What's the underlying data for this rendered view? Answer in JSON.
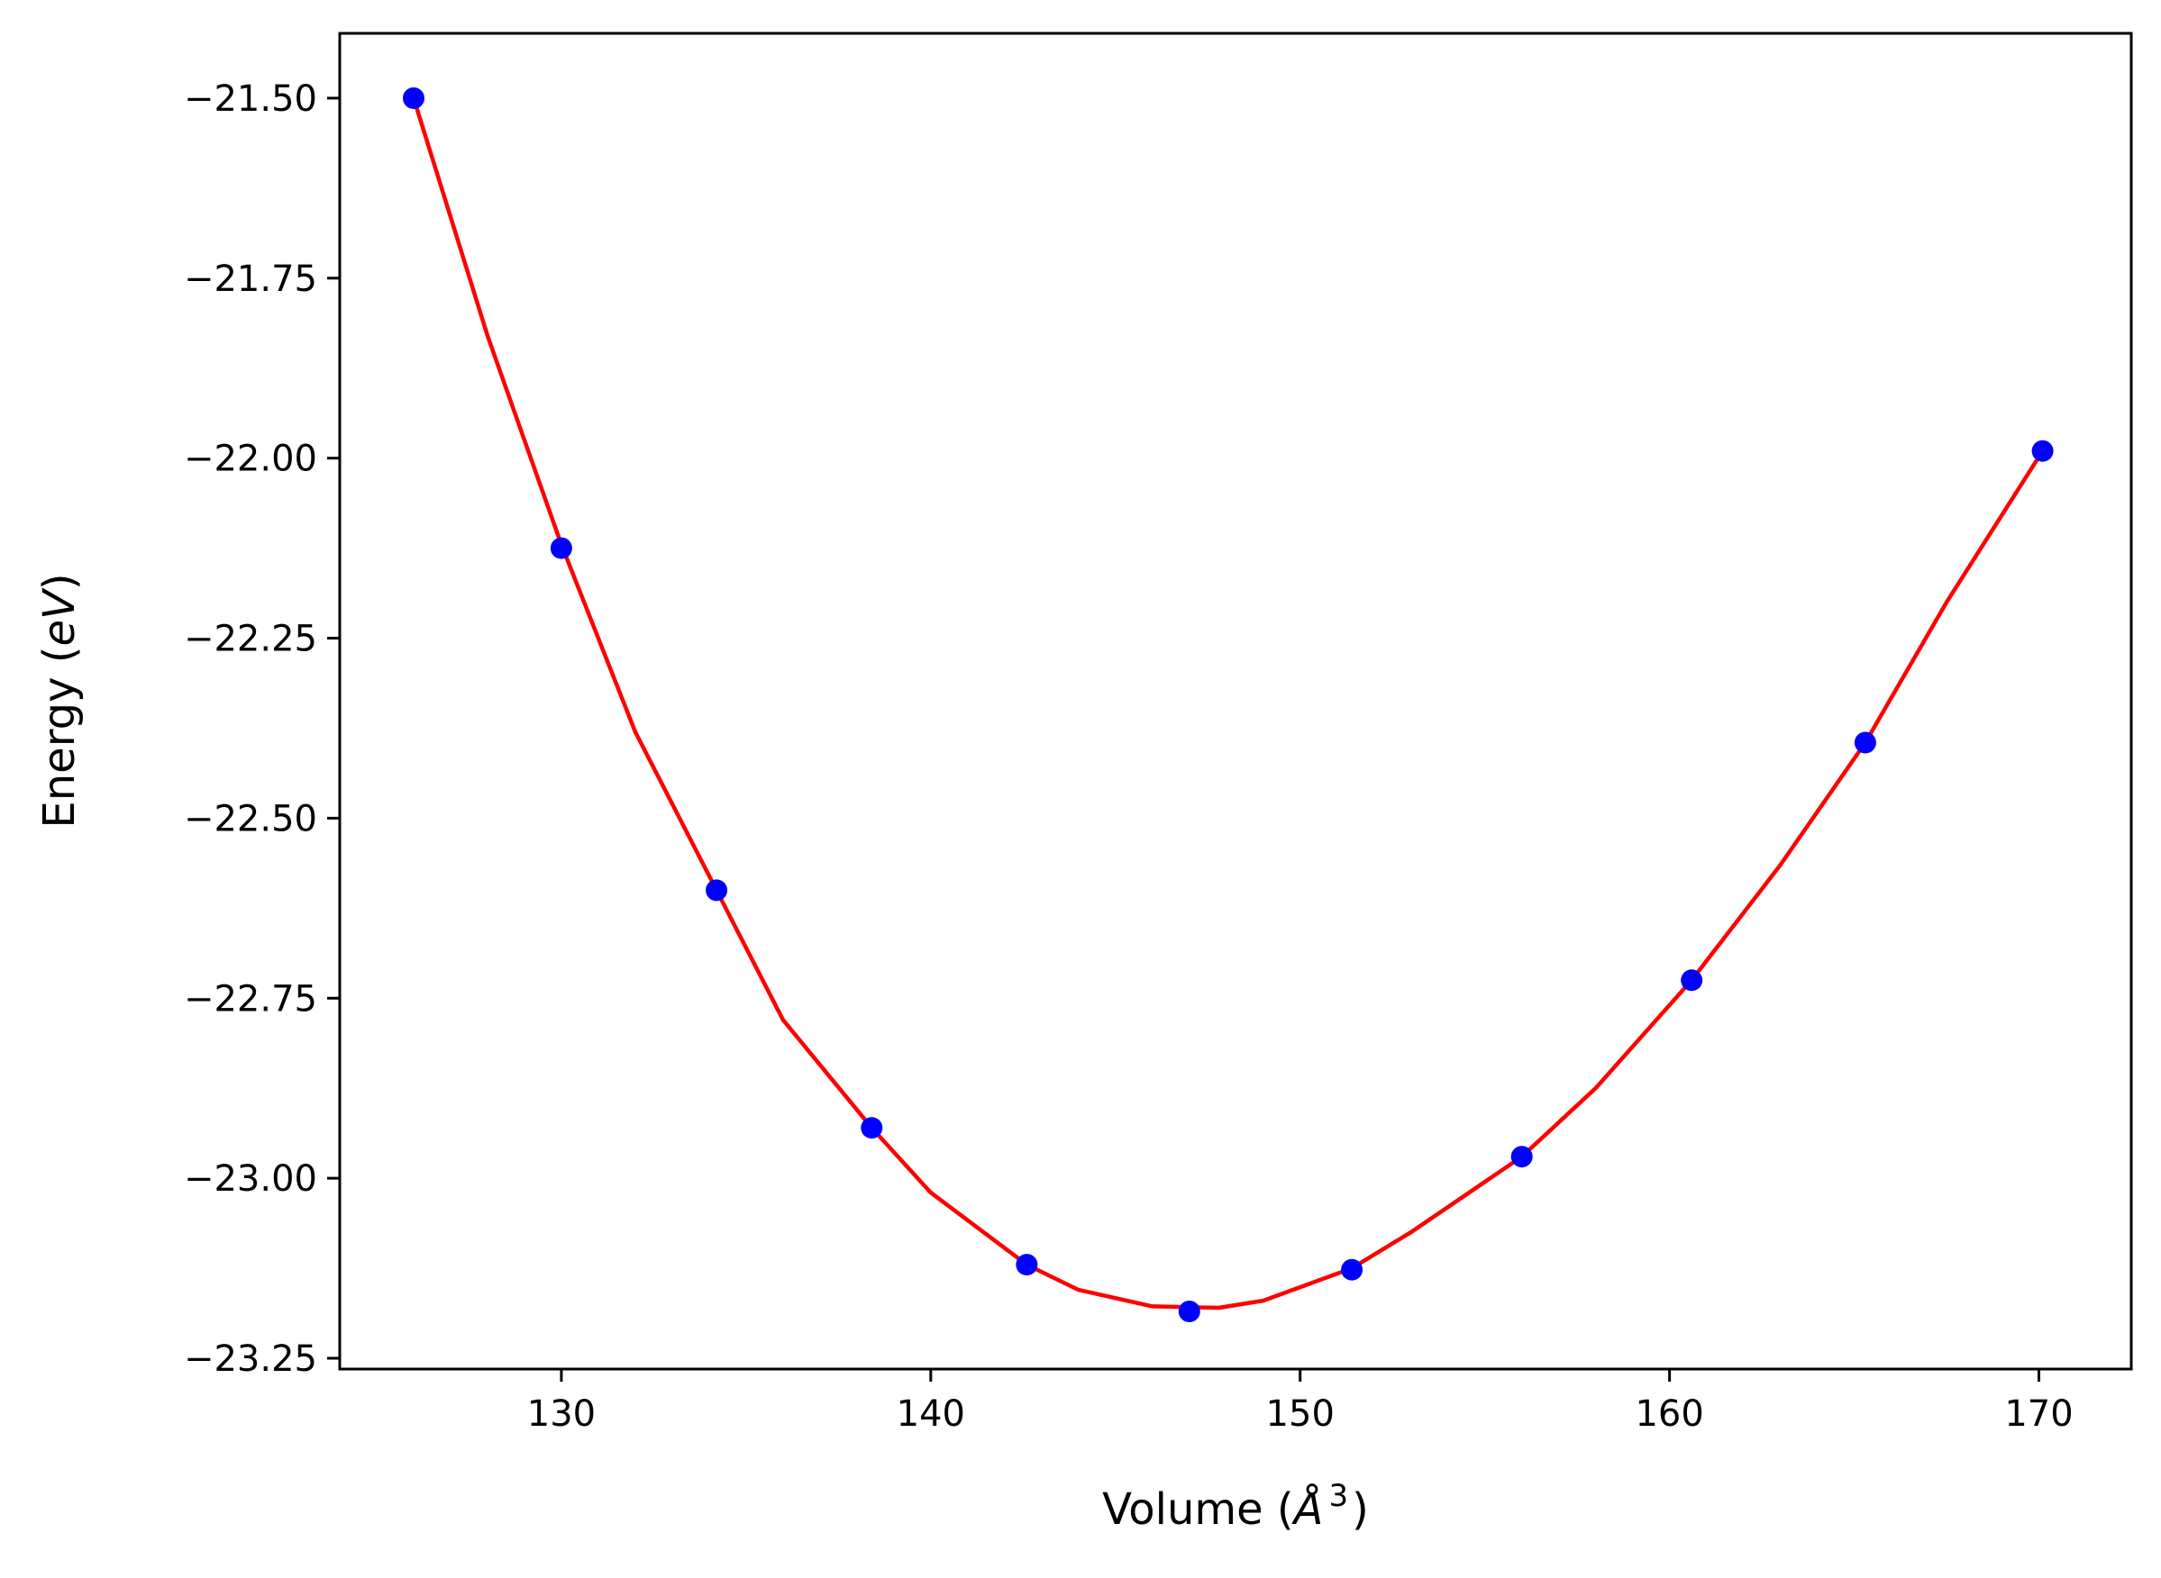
{
  "chart_data": {
    "type": "scatter",
    "xlabel": "Volume (Å³)",
    "xlabel_parts": {
      "prefix": "Volume (",
      "symbol": "Å",
      "superscript": "3",
      "suffix": ")"
    },
    "ylabel": "Energy (eV)",
    "ylabel_parts": {
      "prefix": "Energy (",
      "unit": "eV",
      "suffix": ")"
    },
    "xlim": [
      124.0,
      172.5
    ],
    "ylim": [
      -23.265,
      -21.41
    ],
    "xticks": [
      130,
      140,
      150,
      160,
      170
    ],
    "xtick_labels": [
      "130",
      "140",
      "150",
      "160",
      "170"
    ],
    "yticks": [
      -21.5,
      -21.75,
      -22.0,
      -22.25,
      -22.5,
      -22.75,
      -23.0,
      -23.25
    ],
    "ytick_labels": [
      "−21.50",
      "−21.75",
      "−22.00",
      "−22.25",
      "−22.50",
      "−22.75",
      "−23.00",
      "−23.25"
    ],
    "grid": false,
    "series": [
      {
        "kind": "points",
        "color": "#0000ff",
        "x": [
          126.0,
          130.0,
          134.2,
          138.4,
          142.6,
          147.0,
          151.4,
          156.0,
          160.6,
          165.3,
          170.1
        ],
        "y": [
          -21.5,
          -22.125,
          -22.6,
          -22.93,
          -23.12,
          -23.185,
          -23.127,
          -22.97,
          -22.725,
          -22.395,
          -21.99
        ]
      },
      {
        "kind": "fit-curve",
        "color": "#ff0000",
        "x": [
          126.0,
          128.0,
          130.0,
          132.0,
          134.2,
          136.0,
          138.4,
          140.0,
          142.6,
          144.0,
          146.0,
          147.8,
          149.0,
          151.4,
          153.0,
          156.0,
          158.0,
          160.6,
          163.0,
          165.3,
          167.5,
          170.1
        ],
        "y": [
          -21.5,
          -21.83,
          -22.12,
          -22.38,
          -22.6,
          -22.78,
          -22.93,
          -23.02,
          -23.12,
          -23.155,
          -23.178,
          -23.18,
          -23.17,
          -23.125,
          -23.075,
          -22.97,
          -22.875,
          -22.725,
          -22.565,
          -22.395,
          -22.2,
          -21.99
        ]
      }
    ]
  }
}
